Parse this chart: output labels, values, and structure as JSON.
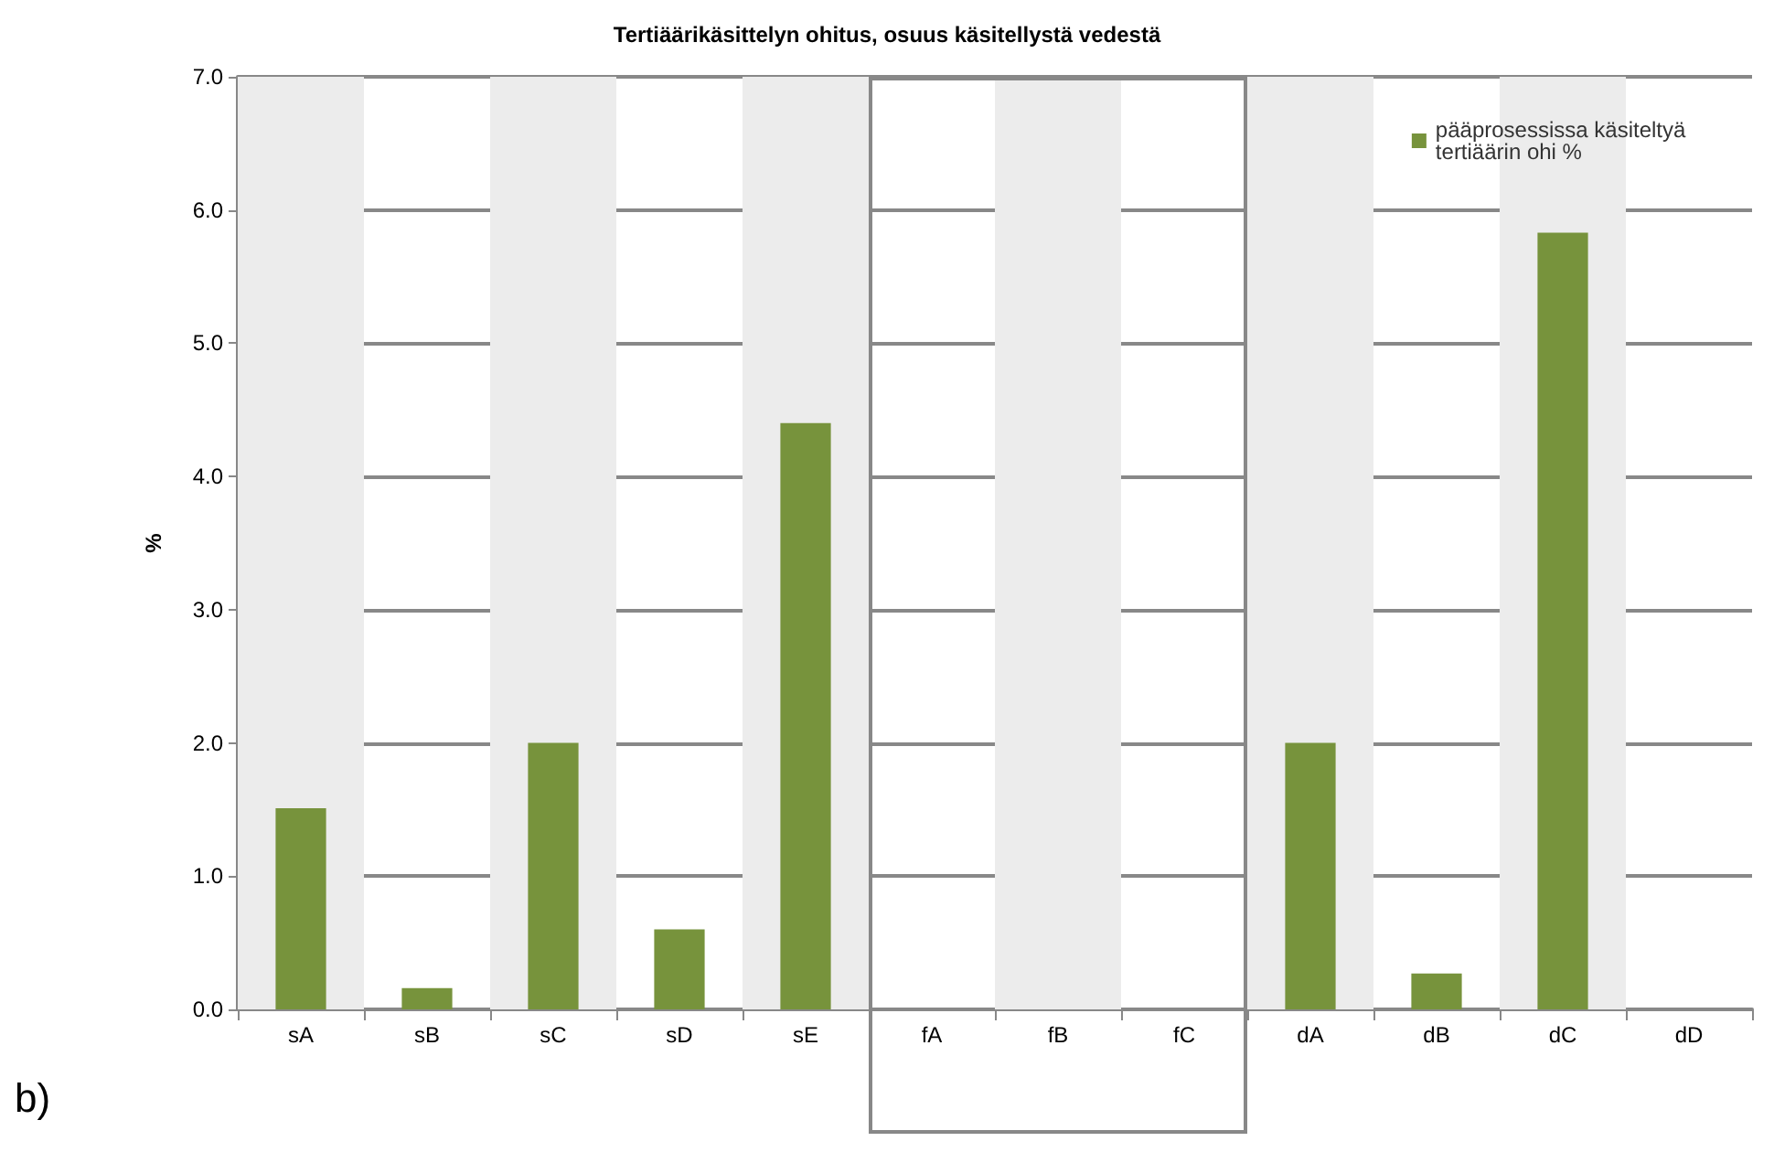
{
  "chart_data": {
    "type": "bar",
    "title": "Tertiäärikäsittelyn ohitus, osuus käsitellystä vedestä",
    "ylabel": "%",
    "categories": [
      "sA",
      "sB",
      "sC",
      "sD",
      "sE",
      "fA",
      "fB",
      "fC",
      "dA",
      "dB",
      "dC",
      "dD"
    ],
    "series": [
      {
        "name": "pääprosessissa käsiteltyä tertiäärin ohi %",
        "color": "#77933c",
        "values": [
          1.51,
          0.16,
          2.0,
          0.6,
          4.4,
          0,
          0,
          0,
          2.0,
          0.27,
          5.83,
          0
        ]
      }
    ],
    "ylim": [
      0,
      7
    ],
    "yticks": [
      {
        "value": 0,
        "label": "0.0"
      },
      {
        "value": 1,
        "label": "1.0"
      },
      {
        "value": 2,
        "label": "2.0"
      },
      {
        "value": 3,
        "label": "3.0"
      },
      {
        "value": 4,
        "label": "4.0"
      },
      {
        "value": 5,
        "label": "5.0"
      },
      {
        "value": 6,
        "label": "6.0"
      },
      {
        "value": 7,
        "label": "7.0"
      }
    ],
    "grid": "y",
    "legend": "top right",
    "bands": [
      {
        "axis": "x",
        "from": "sA",
        "to": "sA",
        "color": "#ececec"
      },
      {
        "axis": "x",
        "from": "sC",
        "to": "sC",
        "color": "#ececec"
      },
      {
        "axis": "x",
        "from": "sE",
        "to": "sE",
        "color": "#ececec"
      },
      {
        "axis": "x",
        "from": "fB",
        "to": "fB",
        "color": "#ececec"
      },
      {
        "axis": "x",
        "from": "dA",
        "to": "dA",
        "color": "#ececec"
      },
      {
        "axis": "x",
        "from": "dC",
        "to": "dC",
        "color": "#ececec"
      }
    ],
    "annotations": [
      "b)"
    ]
  }
}
